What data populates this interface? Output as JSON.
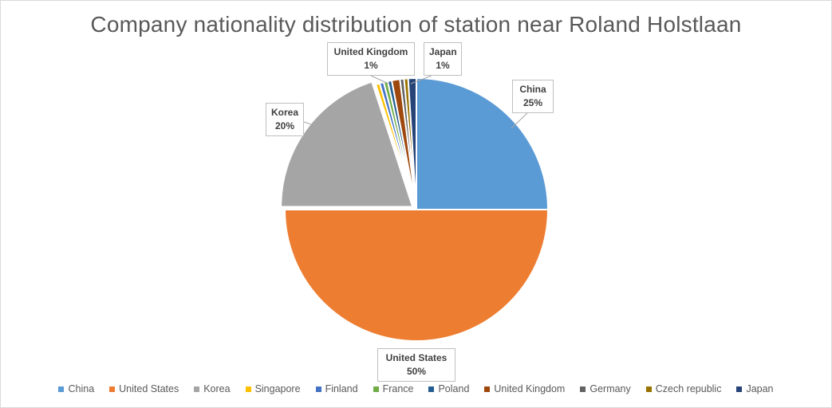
{
  "chart_data": {
    "type": "pie",
    "title": "Company nationality distribution of station near Roland Holstlaan",
    "slices": [
      {
        "label": "China",
        "value": 25,
        "color": "#5b9bd5",
        "data_label": "25%"
      },
      {
        "label": "United States",
        "value": 50,
        "color": "#ed7d31",
        "data_label": "50%"
      },
      {
        "label": "Korea",
        "value": 20,
        "color": "#a5a5a5",
        "data_label": "20%"
      },
      {
        "label": "Singapore",
        "value": 0.5,
        "color": "#ffc000"
      },
      {
        "label": "Finland",
        "value": 0.5,
        "color": "#4472c4"
      },
      {
        "label": "France",
        "value": 0.5,
        "color": "#70ad47"
      },
      {
        "label": "Poland",
        "value": 0.5,
        "color": "#255e91"
      },
      {
        "label": "United Kingdom",
        "value": 1,
        "color": "#9e480e",
        "data_label": "1%"
      },
      {
        "label": "Germany",
        "value": 0.5,
        "color": "#636363"
      },
      {
        "label": "Czech republic",
        "value": 0.5,
        "color": "#997300"
      },
      {
        "label": "Japan",
        "value": 1,
        "color": "#264478",
        "data_label": "1%"
      }
    ],
    "legend_position": "bottom"
  }
}
